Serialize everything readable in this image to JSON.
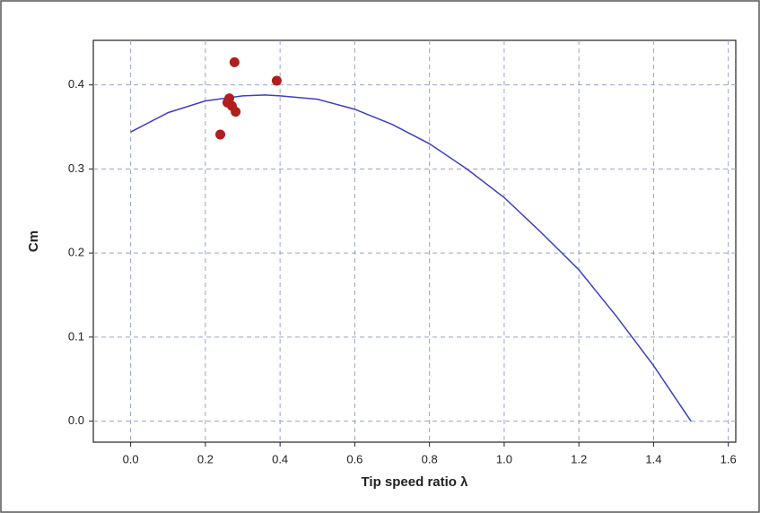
{
  "chart_data": {
    "type": "line",
    "xlabel": "Tip speed ratio λ",
    "ylabel": "Cm",
    "xlim": [
      -0.1,
      1.62
    ],
    "ylim": [
      -0.025,
      0.453
    ],
    "xticks": [
      {
        "value": 0,
        "label": "0.0"
      },
      0.2,
      0.4,
      0.6,
      0.8,
      {
        "value": 1,
        "label": "1.0"
      },
      1.2,
      1.4,
      1.6
    ],
    "yticks": [
      {
        "value": 0,
        "label": "0.0"
      },
      0.1,
      0.2,
      0.3,
      0.4
    ],
    "grid": true,
    "series": [
      {
        "style": "line",
        "color": "#3a3fc4",
        "x": [
          0,
          0.1,
          0.2,
          0.3,
          0.36,
          0.4,
          0.5,
          0.6,
          0.7,
          0.8,
          0.9,
          1.0,
          1.1,
          1.2,
          1.3,
          1.4,
          1.5
        ],
        "values": [
          0.344,
          0.367,
          0.381,
          0.387,
          0.388,
          0.387,
          0.383,
          0.371,
          0.353,
          0.33,
          0.3,
          0.266,
          0.224,
          0.18,
          0.125,
          0.066,
          0.0
        ]
      },
      {
        "style": "markers",
        "color": "#b01e1e",
        "x": [
          0.278,
          0.391,
          0.264,
          0.271,
          0.281,
          0.24,
          0.259
        ],
        "values": [
          0.427,
          0.405,
          0.384,
          0.375,
          0.368,
          0.341,
          0.379
        ]
      }
    ]
  }
}
